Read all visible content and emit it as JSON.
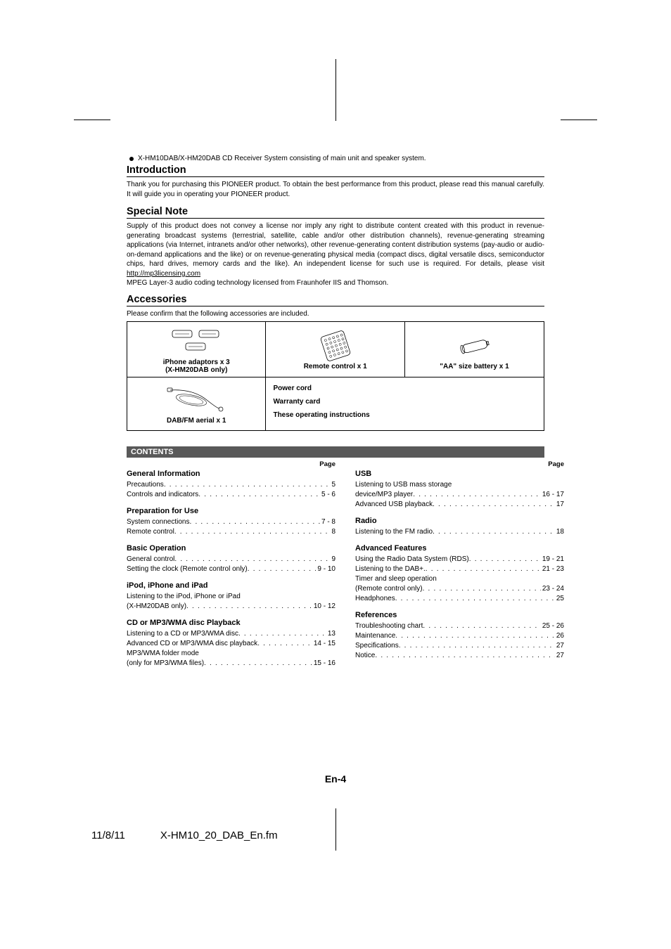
{
  "cropmarks": true,
  "preline": "X-HM10DAB/X-HM20DAB CD Receiver System consisting of main unit and speaker system.",
  "sections": {
    "intro": {
      "title": "Introduction",
      "body": "Thank you for purchasing this PIONEER product. To obtain the best performance from this product, please read this manual carefully. It will guide you in operating your PIONEER product."
    },
    "special": {
      "title": "Special Note",
      "body1": "Supply of this product does not convey a license nor imply any right to distribute content created with this product in revenue-generating broadcast systems (terrestrial, satellite, cable and/or other distribution channels), revenue-generating streaming applications (via Internet, intranets and/or other networks), other revenue-generating content distribution systems (pay-audio or audio-on-demand applications and the like) or on revenue-generating physical media (compact discs, digital versatile discs, semiconductor chips, hard drives, memory cards and the like). An independent license for such use is required. For details, please visit ",
      "link": "http://mp3licensing.com",
      "body2": "MPEG Layer-3 audio coding technology licensed from Fraunhofer IIS and Thomson."
    },
    "accessories": {
      "title": "Accessories",
      "intro": "Please confirm that the following accessories are included.",
      "items": {
        "r1c1": "iPhone adaptors x 3\n(X-HM20DAB only)",
        "r1c2": "Remote control x 1",
        "r1c3": "\"AA\" size battery x 1",
        "r2c1": "DAB/FM aerial x 1",
        "r2c2a": "Power cord",
        "r2c2b": "Warranty card",
        "r2c2c": "These operating instructions"
      }
    }
  },
  "contents": {
    "header": "CONTENTS",
    "page_label": "Page",
    "left": [
      {
        "group": "General Information",
        "items": [
          {
            "label": "Precautions",
            "page": "5"
          },
          {
            "label": "Controls and indicators",
            "page": "5 - 6"
          }
        ]
      },
      {
        "group": "Preparation for Use",
        "items": [
          {
            "label": "System connections",
            "page": "7 - 8"
          },
          {
            "label": "Remote control",
            "page": "8"
          }
        ]
      },
      {
        "group": "Basic Operation",
        "items": [
          {
            "label": "General control",
            "page": "9"
          },
          {
            "label": "Setting the clock (Remote control only)",
            "page": "9 - 10"
          }
        ]
      },
      {
        "group": "iPod, iPhone and iPad",
        "items": [
          {
            "label": "Listening to the iPod, iPhone or iPad",
            "nopage": true
          },
          {
            "label": "(X-HM20DAB only)",
            "bold_prefix": "(",
            "page": "10 - 12"
          }
        ]
      },
      {
        "group": "CD or MP3/WMA disc Playback",
        "items": [
          {
            "label": "Listening to a CD or MP3/WMA disc",
            "page": "13"
          },
          {
            "label": "Advanced CD or MP3/WMA disc playback",
            "page": "14 - 15"
          },
          {
            "label": "MP3/WMA folder mode",
            "nopage": true
          },
          {
            "label": "(only for MP3/WMA files)",
            "page": "15 - 16"
          }
        ]
      }
    ],
    "right": [
      {
        "group": "USB",
        "items": [
          {
            "label": "Listening to USB mass storage",
            "nopage": true
          },
          {
            "label": "device/MP3 player",
            "page": "16 - 17"
          },
          {
            "label": "Advanced USB playback",
            "page": "17"
          }
        ]
      },
      {
        "group": "Radio",
        "items": [
          {
            "label": "Listening to the FM radio",
            "page": "18"
          }
        ]
      },
      {
        "group": "Advanced Features",
        "items": [
          {
            "label": "Using the Radio Data System (RDS)",
            "page": "19 - 21"
          },
          {
            "label": "Listening to the DAB+.",
            "page": "21 - 23"
          },
          {
            "label": "Timer and sleep operation",
            "nopage": true
          },
          {
            "label": "(Remote control only)",
            "page": "23 - 24"
          },
          {
            "label": "Headphones",
            "page": "25"
          }
        ]
      },
      {
        "group": "References",
        "items": [
          {
            "label": "Troubleshooting chart",
            "page": "25 - 26"
          },
          {
            "label": "Maintenance",
            "page": "26"
          },
          {
            "label": "Specifications",
            "page": "27"
          },
          {
            "label": "Notice",
            "page": "27"
          }
        ]
      }
    ]
  },
  "footer": {
    "page": "En-4",
    "date": "11/8/11",
    "file": "X-HM10_20_DAB_En.fm"
  }
}
